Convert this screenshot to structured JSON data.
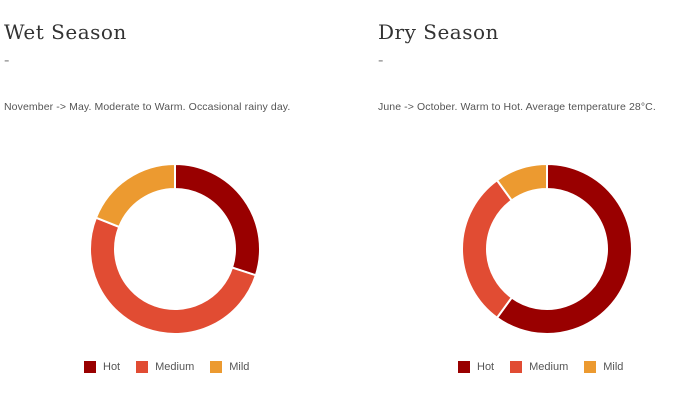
{
  "colors": {
    "hot": "#990000",
    "medium": "#e14c33",
    "mild": "#ec9a30"
  },
  "chart_data": [
    {
      "type": "pie",
      "title": "Wet Season",
      "subtitle": "November -> May. Moderate to Warm. Occasional rainy day.",
      "categories": [
        "Hot",
        "Medium",
        "Mild"
      ],
      "values": [
        30,
        51,
        19
      ],
      "legend_position": "bottom"
    },
    {
      "type": "pie",
      "title": "Dry Season",
      "subtitle": "June -> October. Warm to Hot. Average temperature 28°C.",
      "categories": [
        "Hot",
        "Medium",
        "Mild"
      ],
      "values": [
        60,
        30,
        10
      ],
      "legend_position": "bottom"
    }
  ],
  "separator": "-"
}
